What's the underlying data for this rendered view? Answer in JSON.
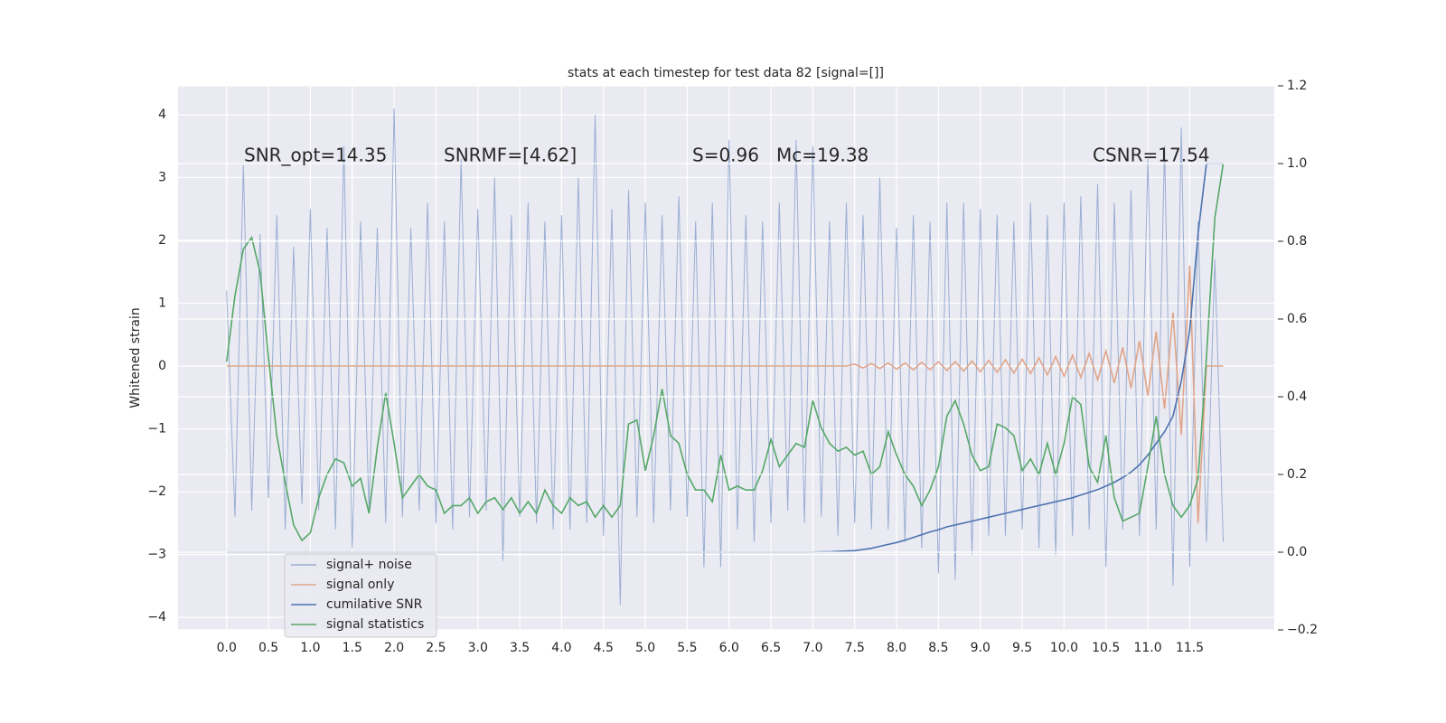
{
  "chart_data": {
    "type": "line",
    "title": "stats at each timestep for test data 82 [signal=[]]",
    "ylabel": "Whitened strain",
    "annotations": [
      "SNR_opt=14.35",
      "SNRMF=[4.62]",
      "S=0.96",
      "Mc=19.38",
      "CSNR=17.54"
    ],
    "xlim": [
      -0.58,
      12.51
    ],
    "ylim": [
      -4.2,
      4.46
    ],
    "y2lim": [
      -0.2,
      1.2
    ],
    "xticks": [
      {
        "value": 0,
        "label": "0.0"
      },
      0.5,
      {
        "value": 1,
        "label": "1.0"
      },
      1.5,
      {
        "value": 2,
        "label": "2.0"
      },
      2.5,
      {
        "value": 3,
        "label": "3.0"
      },
      3.5,
      {
        "value": 4,
        "label": "4.0"
      },
      4.5,
      {
        "value": 5,
        "label": "5.0"
      },
      5.5,
      {
        "value": 6,
        "label": "6.0"
      },
      6.5,
      {
        "value": 7,
        "label": "7.0"
      },
      7.5,
      {
        "value": 8,
        "label": "8.0"
      },
      8.5,
      {
        "value": 9,
        "label": "9.0"
      },
      9.5,
      {
        "value": 10,
        "label": "10.0"
      },
      10.5,
      {
        "value": 11,
        "label": "11.0"
      },
      11.5
    ],
    "yticks": [
      {
        "value": -4,
        "label": "−4"
      },
      {
        "value": -3,
        "label": "−3"
      },
      {
        "value": -2,
        "label": "−2"
      },
      {
        "value": -1,
        "label": "−1"
      },
      0,
      1,
      2,
      3,
      4
    ],
    "y2ticks": [
      {
        "value": -0.2,
        "label": "−0.2"
      },
      {
        "value": 0,
        "label": "0.0"
      },
      0.2,
      0.4,
      0.6,
      0.8,
      {
        "value": 1,
        "label": "1.0"
      },
      1.2
    ],
    "grid": true,
    "legend": "lower left",
    "x": [
      0.0,
      0.1,
      0.2,
      0.3,
      0.4,
      0.5,
      0.6,
      0.7,
      0.8,
      0.9,
      1.0,
      1.1,
      1.2,
      1.3,
      1.4,
      1.5,
      1.6,
      1.7,
      1.8,
      1.9,
      2.0,
      2.1,
      2.2,
      2.3,
      2.4,
      2.5,
      2.6,
      2.7,
      2.8,
      2.9,
      3.0,
      3.1,
      3.2,
      3.3,
      3.4,
      3.5,
      3.6,
      3.7,
      3.8,
      3.9,
      4.0,
      4.1,
      4.2,
      4.3,
      4.4,
      4.5,
      4.6,
      4.7,
      4.8,
      4.9,
      5.0,
      5.1,
      5.2,
      5.3,
      5.4,
      5.5,
      5.6,
      5.7,
      5.8,
      5.9,
      6.0,
      6.1,
      6.2,
      6.3,
      6.4,
      6.5,
      6.6,
      6.7,
      6.8,
      6.9,
      7.0,
      7.1,
      7.2,
      7.3,
      7.4,
      7.5,
      7.6,
      7.7,
      7.8,
      7.9,
      8.0,
      8.1,
      8.2,
      8.3,
      8.4,
      8.5,
      8.6,
      8.7,
      8.8,
      8.9,
      9.0,
      9.1,
      9.2,
      9.3,
      9.4,
      9.5,
      9.6,
      9.7,
      9.8,
      9.9,
      10.0,
      10.1,
      10.2,
      10.3,
      10.4,
      10.5,
      10.6,
      10.7,
      10.8,
      10.9,
      11.0,
      11.1,
      11.2,
      11.3,
      11.4,
      11.5,
      11.6,
      11.7,
      11.8,
      11.9
    ],
    "series": [
      {
        "name": "signal+ noise",
        "color": "#9aaed2",
        "axis": "y",
        "values": [
          1.2,
          -2.4,
          3.2,
          -2.3,
          2.1,
          -2.1,
          2.4,
          -2.6,
          1.9,
          -2.2,
          2.5,
          -2.3,
          2.2,
          -2.6,
          3.5,
          -2.9,
          2.3,
          -2.3,
          2.2,
          -2.5,
          4.1,
          -2.4,
          2.2,
          -2.3,
          2.6,
          -2.5,
          2.3,
          -2.6,
          3.3,
          -2.4,
          2.5,
          -2.3,
          3.0,
          -3.1,
          2.4,
          -2.4,
          2.6,
          -2.5,
          2.3,
          -2.6,
          2.4,
          -2.6,
          3.0,
          -2.5,
          4.0,
          -2.7,
          2.5,
          -3.8,
          2.8,
          -2.4,
          2.6,
          -2.5,
          2.4,
          -2.3,
          2.7,
          -2.4,
          2.3,
          -3.2,
          2.6,
          -3.2,
          3.6,
          -2.6,
          2.4,
          -2.8,
          2.3,
          -2.5,
          2.6,
          -2.3,
          3.6,
          -2.5,
          3.5,
          -2.4,
          2.3,
          -2.7,
          2.6,
          -2.5,
          2.4,
          -2.6,
          3.0,
          -2.6,
          2.2,
          -2.8,
          2.4,
          -2.9,
          2.3,
          -3.3,
          2.6,
          -3.4,
          2.6,
          -3.0,
          2.5,
          -2.7,
          2.4,
          -2.7,
          2.3,
          -2.6,
          2.6,
          -2.9,
          2.4,
          -3.0,
          2.6,
          -2.7,
          2.7,
          -2.6,
          2.9,
          -3.2,
          2.6,
          -2.6,
          2.8,
          -2.7,
          3.3,
          -2.6,
          3.5,
          -3.5,
          3.8,
          -3.2,
          2.3,
          -2.8,
          1.7,
          -2.8
        ]
      },
      {
        "name": "signal only",
        "color": "#e0a58a",
        "axis": "y",
        "values": [
          0,
          0,
          0,
          0,
          0,
          0,
          0,
          0,
          0,
          0,
          0,
          0,
          0,
          0,
          0,
          0,
          0,
          0,
          0,
          0,
          0,
          0,
          0,
          0,
          0,
          0,
          0,
          0,
          0,
          0,
          0,
          0,
          0,
          0,
          0,
          0,
          0,
          0,
          0,
          0,
          0,
          0,
          0,
          0,
          0,
          0,
          0,
          0,
          0,
          0,
          0,
          0,
          0,
          0,
          0,
          0,
          0,
          0,
          0,
          0,
          0,
          0,
          0,
          0,
          0,
          0,
          0,
          0,
          0,
          0,
          0,
          0,
          0,
          0,
          0,
          0.03,
          -0.03,
          0.04,
          -0.04,
          0.05,
          -0.05,
          0.05,
          -0.06,
          0.06,
          -0.06,
          0.07,
          -0.07,
          0.07,
          -0.08,
          0.08,
          -0.09,
          0.09,
          -0.1,
          0.1,
          -0.11,
          0.11,
          -0.12,
          0.13,
          -0.14,
          0.15,
          -0.16,
          0.17,
          -0.18,
          0.2,
          -0.22,
          0.24,
          -0.27,
          0.3,
          -0.35,
          0.4,
          -0.47,
          0.55,
          -0.68,
          0.85,
          -1.1,
          1.6,
          -2.5,
          0,
          0,
          0
        ]
      },
      {
        "name": "cumilative SNR",
        "color": "#4c72b0",
        "axis": "y2",
        "values": [
          0,
          0,
          0,
          0,
          0,
          0,
          0,
          0,
          0,
          0,
          0,
          0,
          0,
          0,
          0,
          0,
          0,
          0,
          0,
          0,
          0,
          0,
          0,
          0,
          0,
          0,
          0,
          0,
          0,
          0,
          0,
          0,
          0,
          0,
          0,
          0,
          0,
          0,
          0,
          0,
          0,
          0,
          0,
          0,
          0,
          0,
          0,
          0,
          0,
          0,
          0,
          0,
          0,
          0,
          0,
          0,
          0,
          0,
          0,
          0,
          0,
          0,
          0,
          0,
          0,
          0,
          0,
          0,
          0,
          0,
          0,
          0.001,
          0.001,
          0.002,
          0.003,
          0.004,
          0.007,
          0.01,
          0.015,
          0.02,
          0.025,
          0.031,
          0.038,
          0.045,
          0.052,
          0.058,
          0.065,
          0.07,
          0.075,
          0.08,
          0.085,
          0.09,
          0.095,
          0.1,
          0.105,
          0.11,
          0.115,
          0.12,
          0.125,
          0.13,
          0.135,
          0.14,
          0.147,
          0.154,
          0.161,
          0.17,
          0.18,
          0.192,
          0.206,
          0.225,
          0.25,
          0.28,
          0.31,
          0.35,
          0.44,
          0.57,
          0.82,
          1.0,
          1.0,
          1.0
        ]
      },
      {
        "name": "signal statistics",
        "color": "#55a868",
        "axis": "y2",
        "values": [
          0.49,
          0.66,
          0.78,
          0.81,
          0.72,
          0.5,
          0.3,
          0.18,
          0.07,
          0.03,
          0.05,
          0.14,
          0.2,
          0.24,
          0.23,
          0.17,
          0.19,
          0.1,
          0.27,
          0.41,
          0.28,
          0.14,
          0.17,
          0.2,
          0.17,
          0.16,
          0.1,
          0.12,
          0.12,
          0.14,
          0.1,
          0.13,
          0.14,
          0.11,
          0.14,
          0.1,
          0.13,
          0.1,
          0.16,
          0.12,
          0.1,
          0.14,
          0.12,
          0.13,
          0.09,
          0.12,
          0.09,
          0.12,
          0.33,
          0.34,
          0.21,
          0.3,
          0.42,
          0.3,
          0.28,
          0.2,
          0.16,
          0.16,
          0.13,
          0.25,
          0.16,
          0.17,
          0.16,
          0.16,
          0.21,
          0.29,
          0.22,
          0.25,
          0.28,
          0.27,
          0.39,
          0.32,
          0.28,
          0.26,
          0.27,
          0.25,
          0.26,
          0.2,
          0.22,
          0.31,
          0.25,
          0.2,
          0.17,
          0.12,
          0.16,
          0.22,
          0.35,
          0.39,
          0.33,
          0.25,
          0.21,
          0.22,
          0.33,
          0.32,
          0.3,
          0.21,
          0.24,
          0.2,
          0.28,
          0.2,
          0.28,
          0.4,
          0.38,
          0.22,
          0.18,
          0.3,
          0.14,
          0.08,
          0.09,
          0.1,
          0.22,
          0.35,
          0.2,
          0.12,
          0.09,
          0.12,
          0.19,
          0.5,
          0.86,
          1.0
        ]
      }
    ]
  }
}
